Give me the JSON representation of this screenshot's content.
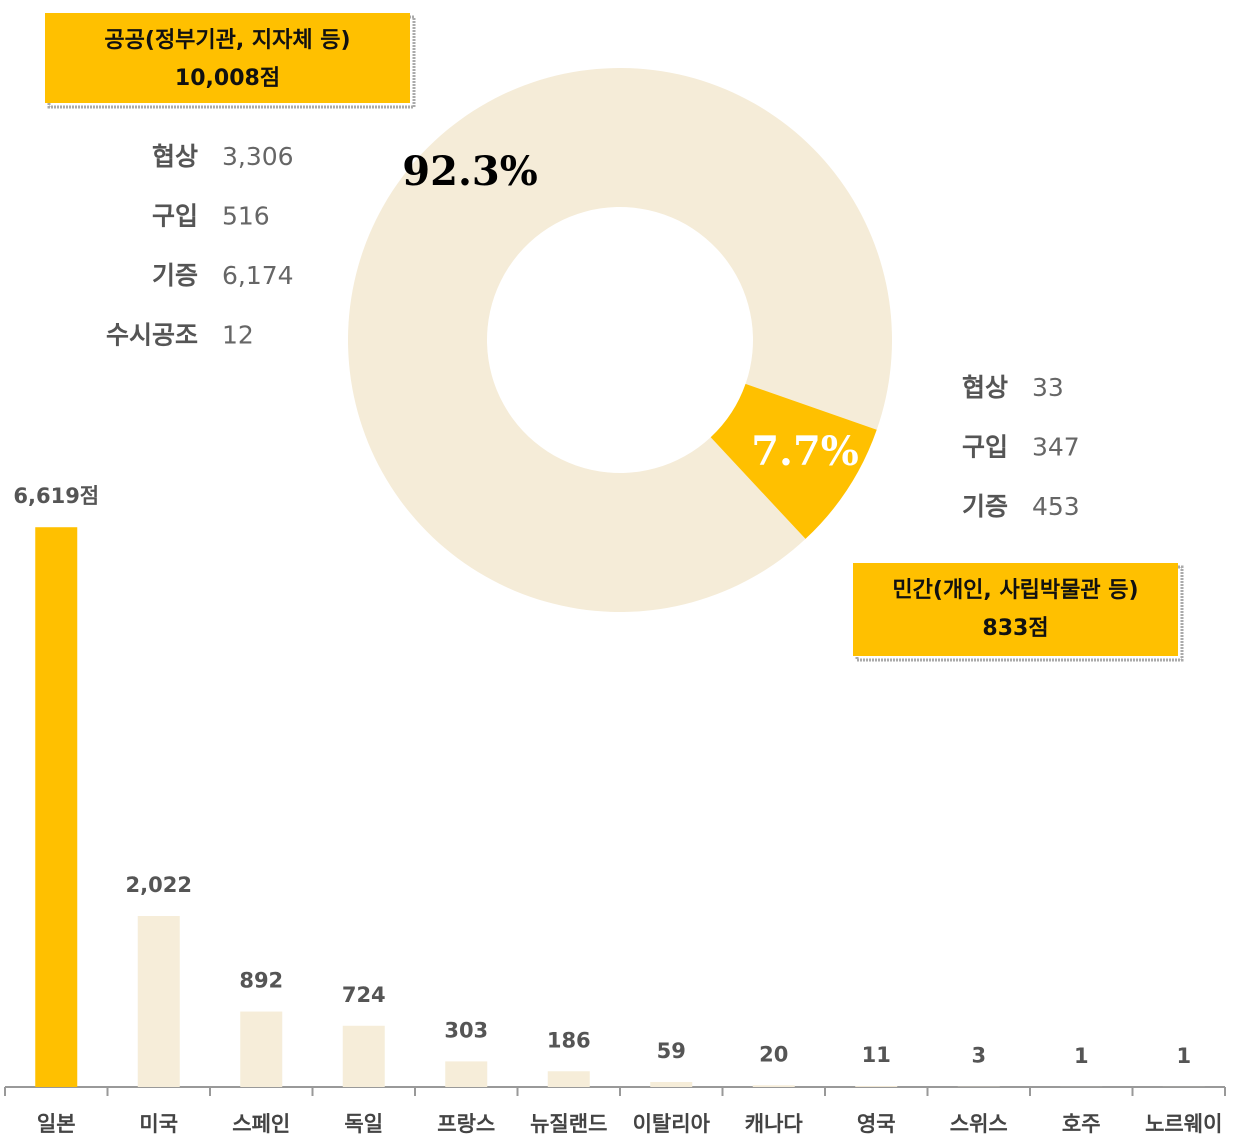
{
  "chart_data": [
    {
      "type": "donut",
      "categories": [
        "공공(정부기관, 지자체 등)",
        "민간(개인, 사립박물관 등)"
      ],
      "values": [
        92.3,
        7.7
      ],
      "value_labels": [
        "92.3%",
        "7.7%"
      ],
      "colors": [
        "#F5ECD8",
        "#FFC000"
      ],
      "annotations": [
        {
          "title": "공공(정부기관, 지자체 등)",
          "total": "10,008점",
          "items": [
            {
              "label": "협상",
              "value": "3,306"
            },
            {
              "label": "구입",
              "value": "516"
            },
            {
              "label": "기증",
              "value": "6,174"
            },
            {
              "label": "수시공조",
              "value": "12"
            }
          ]
        },
        {
          "title": "민간(개인, 사립박물관 등)",
          "total": "833점",
          "items": [
            {
              "label": "협상",
              "value": "33"
            },
            {
              "label": "구입",
              "value": "347"
            },
            {
              "label": "기증",
              "value": "453"
            }
          ]
        }
      ]
    },
    {
      "type": "bar",
      "categories": [
        "일본",
        "미국",
        "스페인",
        "독일",
        "프랑스",
        "뉴질랜드",
        "이탈리아",
        "캐나다",
        "영국",
        "스위스",
        "호주",
        "노르웨이"
      ],
      "values": [
        6619,
        2022,
        892,
        724,
        303,
        186,
        59,
        20,
        11,
        3,
        1,
        1
      ],
      "value_labels": [
        "6,619점",
        "2,022",
        "892",
        "724",
        "303",
        "186",
        "59",
        "20",
        "11",
        "3",
        "1",
        "1"
      ],
      "colors": [
        "#FFC000",
        "#F6EDD9",
        "#F6EDD9",
        "#F6EDD9",
        "#F6EDD9",
        "#F6EDD9",
        "#F6EDD9",
        "#F6EDD9",
        "#F6EDD9",
        "#F6EDD9",
        "#F6EDD9",
        "#F6EDD9"
      ],
      "ylim": [
        0,
        7000
      ]
    }
  ]
}
